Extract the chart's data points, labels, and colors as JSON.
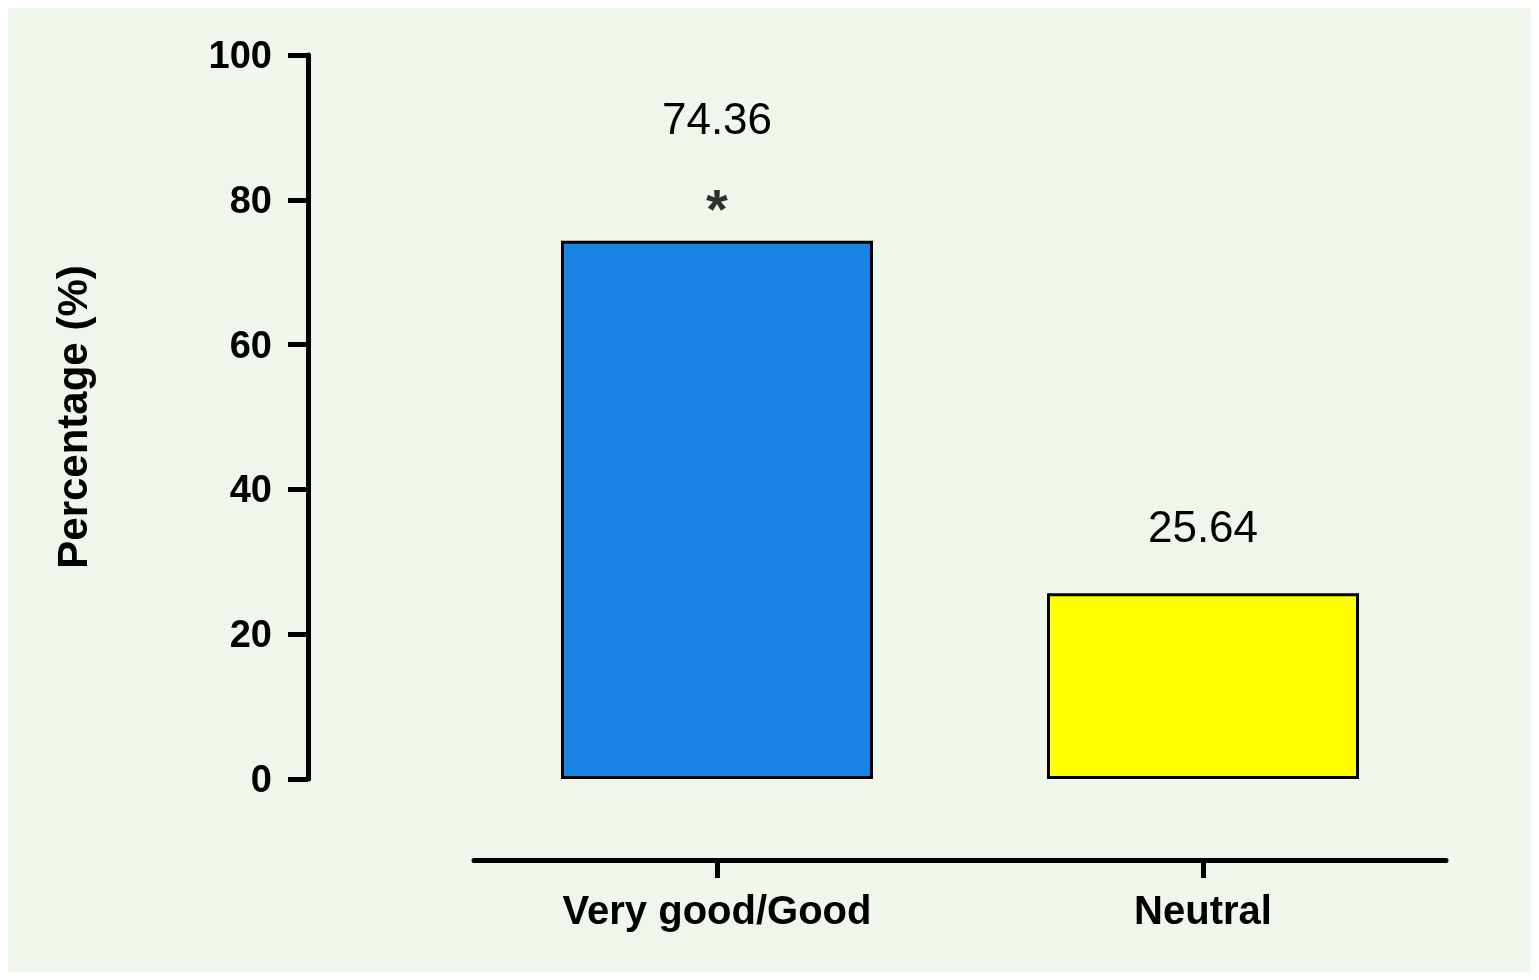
{
  "chart_data": {
    "type": "bar",
    "ylabel": "Percentage (%)",
    "categories": [
      "Very good/Good",
      "Neutral"
    ],
    "values": [
      74.36,
      25.64
    ],
    "colors": [
      "#1a84e6",
      "#ffff00"
    ],
    "ylim": [
      0,
      100
    ],
    "yticks": [
      0,
      20,
      40,
      60,
      80,
      100
    ],
    "data_labels": true,
    "grid": false,
    "annotations": [
      {
        "text": "*",
        "x": "Very good/Good",
        "y": 74.36
      }
    ]
  }
}
